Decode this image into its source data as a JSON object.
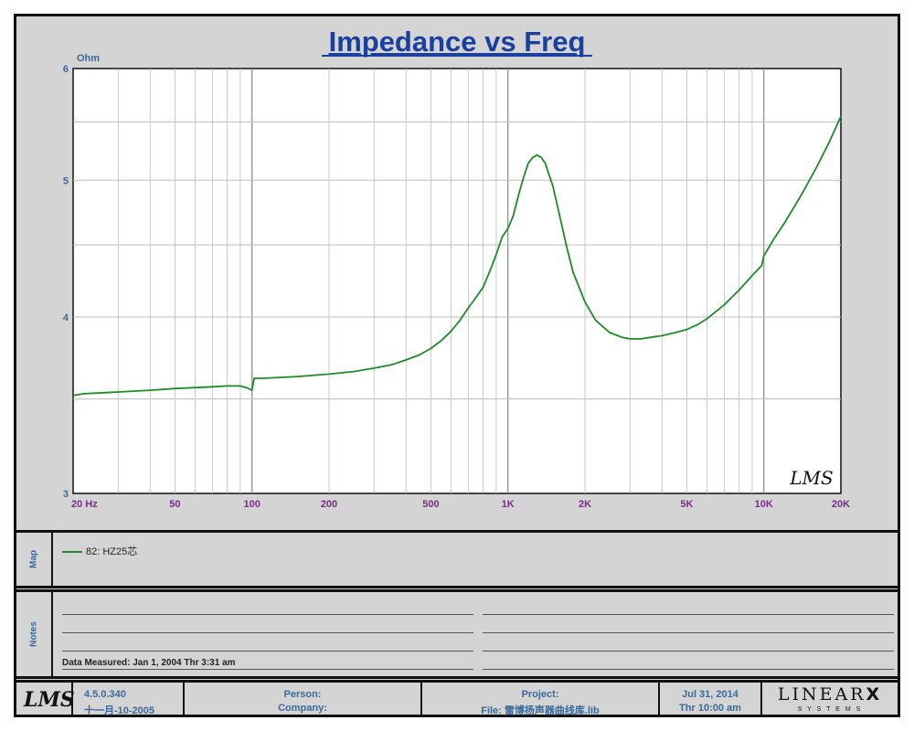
{
  "chart_data": {
    "type": "line",
    "title": "Impedance vs Freq",
    "ylabel": "Ohm",
    "xscale": "log",
    "yscale": "log",
    "xlim": [
      20,
      20000
    ],
    "ylim": [
      3,
      6
    ],
    "grid": true,
    "xticks": [
      {
        "value": 20,
        "label": "20  Hz"
      },
      {
        "value": 50,
        "label": "50"
      },
      {
        "value": 100,
        "label": "100"
      },
      {
        "value": 200,
        "label": "200"
      },
      {
        "value": 500,
        "label": "500"
      },
      {
        "value": 1000,
        "label": "1K"
      },
      {
        "value": 2000,
        "label": "2K"
      },
      {
        "value": 5000,
        "label": "5K"
      },
      {
        "value": 10000,
        "label": "10K"
      },
      {
        "value": 20000,
        "label": "20K"
      }
    ],
    "yticks": [
      {
        "value": 3,
        "label": "3"
      },
      {
        "value": 4,
        "label": "4"
      },
      {
        "value": 5,
        "label": "5"
      },
      {
        "value": 6,
        "label": "6"
      }
    ],
    "series": [
      {
        "name": "82: HZ25芯",
        "color": "#1f8a2a",
        "x": [
          20,
          22,
          30,
          40,
          50,
          60,
          70,
          80,
          90,
          95,
          100,
          102,
          110,
          130,
          150,
          200,
          250,
          300,
          350,
          400,
          450,
          500,
          550,
          600,
          650,
          700,
          750,
          800,
          850,
          900,
          950,
          1000,
          1050,
          1100,
          1150,
          1200,
          1250,
          1300,
          1350,
          1400,
          1500,
          1600,
          1700,
          1800,
          2000,
          2200,
          2500,
          2800,
          3000,
          3300,
          3600,
          4000,
          4500,
          5000,
          5500,
          6000,
          7000,
          8000,
          9000,
          9800,
          10000,
          11000,
          12000,
          14000,
          16000,
          18000,
          20000
        ],
        "y": [
          3.52,
          3.53,
          3.54,
          3.55,
          3.56,
          3.565,
          3.57,
          3.575,
          3.575,
          3.565,
          3.55,
          3.62,
          3.62,
          3.625,
          3.63,
          3.645,
          3.66,
          3.68,
          3.7,
          3.73,
          3.76,
          3.8,
          3.85,
          3.91,
          3.98,
          4.06,
          4.13,
          4.2,
          4.31,
          4.43,
          4.56,
          4.62,
          4.72,
          4.88,
          5.02,
          5.14,
          5.19,
          5.21,
          5.19,
          5.14,
          4.95,
          4.7,
          4.48,
          4.3,
          4.1,
          3.98,
          3.9,
          3.87,
          3.86,
          3.86,
          3.87,
          3.88,
          3.9,
          3.92,
          3.95,
          3.99,
          4.08,
          4.18,
          4.28,
          4.35,
          4.42,
          4.55,
          4.66,
          4.88,
          5.1,
          5.32,
          5.55
        ]
      }
    ]
  },
  "map": {
    "label": "Map",
    "entry": "82: HZ25芯"
  },
  "notes": {
    "label": "Notes",
    "measured": "Data Measured: Jan  1, 2004  Thr  3:31 am"
  },
  "footer": {
    "lms_logo": "LMS",
    "version": "4.5.0.340",
    "build_date": "十一月-10-2005",
    "person": "Person:",
    "company": "Company:",
    "project": "Project:",
    "file": "File: 雷博扬声器曲线库.lib",
    "date": "Jul 31, 2014",
    "time": "Thr 10:00 am",
    "brand_top": "LINEAR",
    "brand_x": "X",
    "brand_bottom": "S Y S T E M S"
  },
  "plot_watermark": "LMS"
}
